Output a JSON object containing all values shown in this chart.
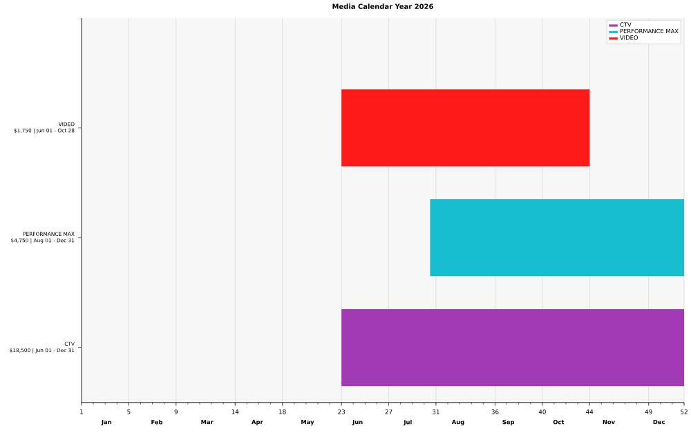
{
  "chart_data": {
    "type": "bar",
    "orientation": "horizontal",
    "title": "Media Calendar Year 2026",
    "categories": [
      "VIDEO\n$1,750 | Jun 01 - Oct 28",
      "PERFORMANCE MAX\n$4,750 | Aug 01 - Dec 31",
      "CTV\n$18,500 | Jun 01 - Dec 31"
    ],
    "series": [
      {
        "name": "CTV",
        "color": "#a33ab5",
        "base": [
          null,
          null,
          23
        ],
        "values": [
          null,
          null,
          29
        ]
      },
      {
        "name": "PERFORMANCE MAX",
        "color": "#17becf",
        "base": [
          null,
          30.5,
          null
        ],
        "values": [
          null,
          21.5,
          null
        ]
      },
      {
        "name": "VIDEO",
        "color": "#ff1a1a",
        "base": [
          23,
          null,
          null
        ],
        "values": [
          21,
          null,
          null
        ]
      }
    ],
    "xlim": [
      1,
      52
    ],
    "xticks": [
      1,
      5,
      9,
      14,
      18,
      23,
      27,
      31,
      36,
      40,
      44,
      49,
      52
    ],
    "annotations": [
      "Jan",
      "Feb",
      "Mar",
      "Apr",
      "May",
      "Jun",
      "Jul",
      "Aug",
      "Sep",
      "Oct",
      "Nov",
      "Dec"
    ],
    "grid": "x",
    "legend": "top right"
  }
}
